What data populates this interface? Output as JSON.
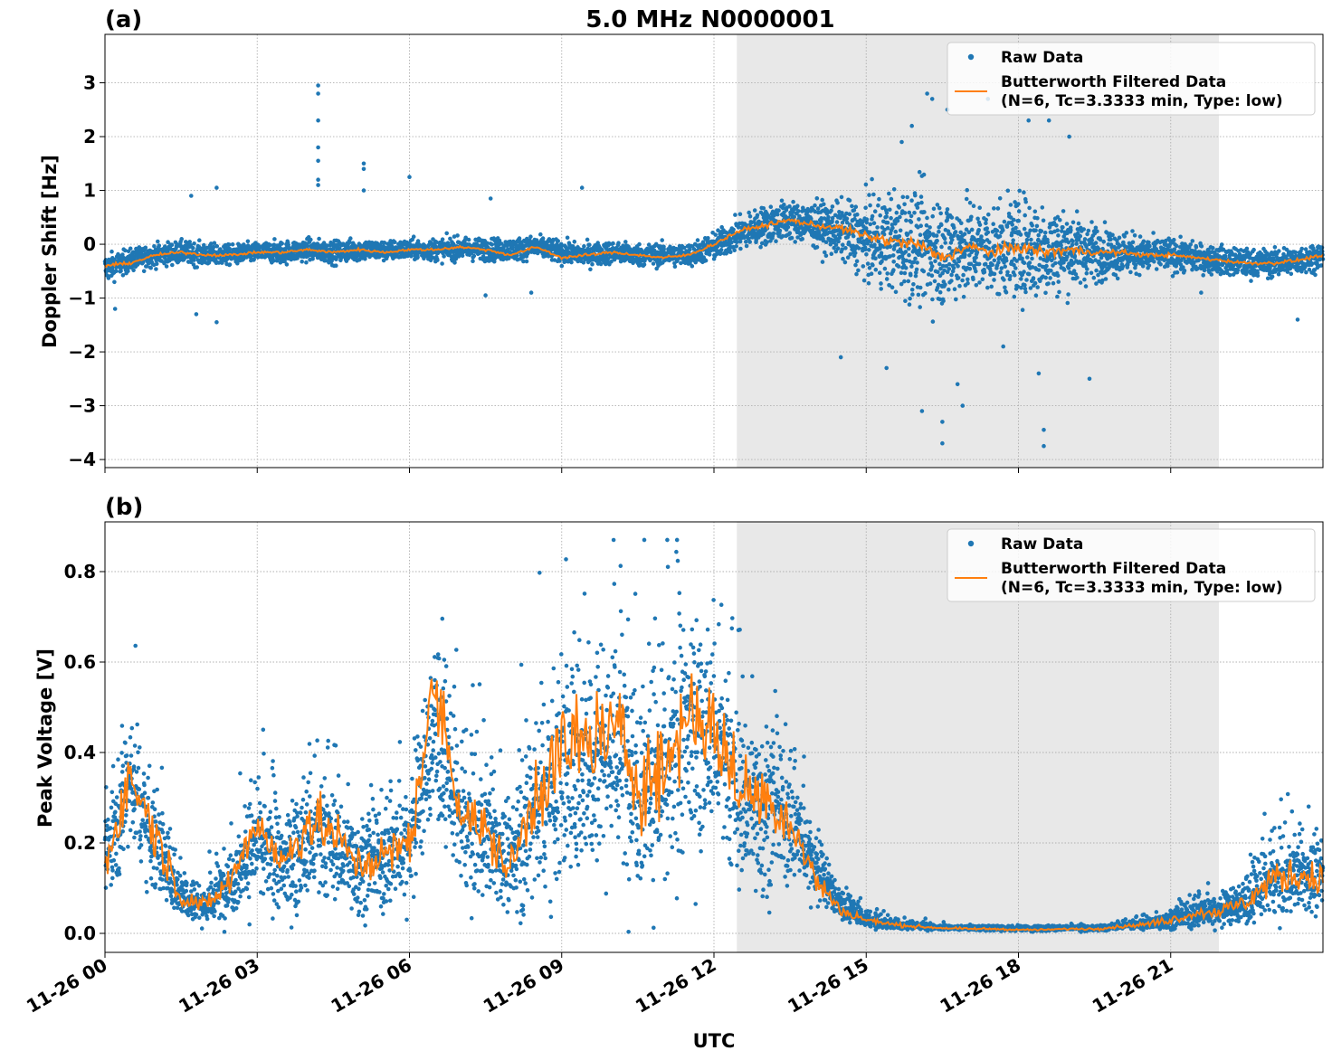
{
  "title": "5.0 MHz N0000001",
  "xlabel": "UTC",
  "x_ticks": [
    "11-26 00",
    "11-26 03",
    "11-26 06",
    "11-26 09",
    "11-26 12",
    "11-26 15",
    "11-26 18",
    "11-26 21"
  ],
  "colors": {
    "raw": "#1f77b4",
    "filtered": "#ff7f0e",
    "shade": "#e8e8e8",
    "grid": "#b0b0b0"
  },
  "chart_data": [
    {
      "panel_label": "(a)",
      "type": "scatter",
      "ylabel": "Doppler Shift [Hz]",
      "xlim": [
        0,
        24
      ],
      "ylim": [
        -4.15,
        3.9
      ],
      "yticks": [
        -4,
        -3,
        -2,
        -1,
        0,
        1,
        2,
        3
      ],
      "ytick_labels": [
        "−4",
        "−3",
        "−2",
        "−1",
        "0",
        "1",
        "2",
        "3"
      ],
      "shaded_x": [
        12.45,
        21.95
      ],
      "grid": true,
      "legend": {
        "placement": "top-right",
        "raw_label": "Raw Data",
        "filtered_label_1": "Butterworth Filtered Data",
        "filtered_label_2": "(N=6, Tc=3.3333 min, Type: low)"
      },
      "series": [
        {
          "name": "Raw Data",
          "x": [
            0,
            0.5,
            1,
            1.5,
            2,
            2.5,
            3,
            3.5,
            4,
            4.5,
            5,
            5.5,
            6,
            6.5,
            7,
            7.5,
            8,
            8.5,
            9,
            9.5,
            10,
            10.5,
            11,
            11.5,
            12,
            12.5,
            13,
            13.5,
            14,
            14.5,
            15,
            15.5,
            16,
            16.5,
            17,
            17.5,
            18,
            18.5,
            19,
            19.5,
            20,
            20.5,
            21,
            21.5,
            22,
            22.5,
            23,
            23.5,
            24
          ],
          "y": [
            -0.45,
            -0.3,
            -0.2,
            -0.15,
            -0.2,
            -0.2,
            -0.15,
            -0.15,
            -0.1,
            -0.15,
            -0.1,
            -0.12,
            -0.1,
            -0.1,
            -0.08,
            -0.1,
            -0.1,
            -0.05,
            -0.15,
            -0.2,
            -0.15,
            -0.2,
            -0.2,
            -0.2,
            -0.05,
            0.2,
            0.35,
            0.45,
            0.35,
            0.25,
            0.1,
            0.05,
            0.0,
            -0.15,
            -0.05,
            -0.1,
            -0.05,
            -0.1,
            -0.1,
            -0.15,
            -0.15,
            -0.2,
            -0.2,
            -0.25,
            -0.3,
            -0.35,
            -0.35,
            -0.3,
            -0.2
          ],
          "spread": [
            0.25,
            0.2,
            0.2,
            0.2,
            0.2,
            0.18,
            0.18,
            0.2,
            0.2,
            0.2,
            0.2,
            0.18,
            0.18,
            0.2,
            0.2,
            0.2,
            0.2,
            0.2,
            0.2,
            0.2,
            0.2,
            0.2,
            0.2,
            0.2,
            0.25,
            0.3,
            0.35,
            0.35,
            0.4,
            0.5,
            0.7,
            0.9,
            1.0,
            1.0,
            0.9,
            0.8,
            0.9,
            0.9,
            0.7,
            0.5,
            0.4,
            0.3,
            0.3,
            0.25,
            0.25,
            0.25,
            0.25,
            0.25,
            0.25
          ],
          "outliers": [
            [
              4.2,
              2.95
            ],
            [
              4.2,
              2.8
            ],
            [
              4.2,
              2.3
            ],
            [
              4.2,
              1.8
            ],
            [
              4.2,
              1.1
            ],
            [
              4.2,
              1.2
            ],
            [
              5.1,
              1.5
            ],
            [
              5.1,
              1.4
            ],
            [
              5.1,
              1.0
            ],
            [
              4.2,
              1.55
            ],
            [
              2.2,
              1.05
            ],
            [
              1.7,
              0.9
            ],
            [
              6.0,
              1.25
            ],
            [
              9.4,
              1.05
            ],
            [
              7.6,
              0.85
            ],
            [
              15.7,
              1.9
            ],
            [
              15.9,
              2.2
            ],
            [
              16.2,
              2.8
            ],
            [
              16.3,
              2.7
            ],
            [
              16.6,
              2.5
            ],
            [
              17.4,
              2.7
            ],
            [
              18.2,
              2.3
            ],
            [
              18.6,
              2.3
            ],
            [
              19.0,
              2.0
            ],
            [
              16.5,
              -3.7
            ],
            [
              16.5,
              -3.3
            ],
            [
              16.9,
              -3.0
            ],
            [
              16.1,
              -3.1
            ],
            [
              15.4,
              -2.3
            ],
            [
              16.8,
              -2.6
            ],
            [
              18.5,
              -3.75
            ],
            [
              18.5,
              -3.45
            ],
            [
              18.4,
              -2.4
            ],
            [
              17.7,
              -1.9
            ],
            [
              19.4,
              -2.5
            ],
            [
              14.5,
              -2.1
            ],
            [
              1.8,
              -1.3
            ],
            [
              2.2,
              -1.45
            ],
            [
              0.2,
              -1.2
            ],
            [
              7.5,
              -0.95
            ],
            [
              8.4,
              -0.9
            ],
            [
              21.6,
              -0.9
            ],
            [
              23.5,
              -1.4
            ]
          ]
        },
        {
          "name": "Butterworth Filtered Data",
          "x": [
            0,
            0.5,
            1,
            1.5,
            2,
            2.5,
            3,
            3.5,
            4,
            4.5,
            5,
            5.5,
            6,
            6.5,
            7,
            7.5,
            8,
            8.5,
            9,
            9.5,
            10,
            10.5,
            11,
            11.5,
            12,
            12.5,
            13,
            13.5,
            14,
            14.5,
            15,
            15.5,
            16,
            16.5,
            17,
            17.5,
            18,
            18.5,
            19,
            19.5,
            20,
            20.5,
            21,
            21.5,
            22,
            22.5,
            23,
            23.5,
            24
          ],
          "y": [
            -0.4,
            -0.35,
            -0.2,
            -0.15,
            -0.2,
            -0.2,
            -0.15,
            -0.15,
            -0.1,
            -0.15,
            -0.1,
            -0.15,
            -0.1,
            -0.1,
            -0.05,
            -0.1,
            -0.2,
            -0.05,
            -0.25,
            -0.2,
            -0.15,
            -0.2,
            -0.25,
            -0.2,
            0.0,
            0.25,
            0.35,
            0.45,
            0.35,
            0.3,
            0.15,
            0.05,
            0.0,
            -0.25,
            -0.05,
            -0.15,
            -0.05,
            -0.15,
            -0.1,
            -0.15,
            -0.15,
            -0.2,
            -0.2,
            -0.25,
            -0.3,
            -0.35,
            -0.35,
            -0.3,
            -0.2
          ]
        }
      ]
    },
    {
      "panel_label": "(b)",
      "type": "scatter",
      "ylabel": "Peak Voltage [V]",
      "xlim": [
        0,
        24
      ],
      "ylim": [
        -0.042,
        0.91
      ],
      "yticks": [
        0.0,
        0.2,
        0.4,
        0.6,
        0.8
      ],
      "ytick_labels": [
        "0.0",
        "0.2",
        "0.4",
        "0.6",
        "0.8"
      ],
      "shaded_x": [
        12.45,
        21.95
      ],
      "grid": true,
      "legend": {
        "placement": "top-right",
        "raw_label": "Raw Data",
        "filtered_label_1": "Butterworth Filtered Data",
        "filtered_label_2": "(N=6, Tc=3.3333 min, Type: low)"
      },
      "series": [
        {
          "name": "Raw Data",
          "x": [
            0,
            0.5,
            1,
            1.5,
            2,
            2.5,
            3,
            3.5,
            4,
            4.5,
            5,
            5.5,
            6,
            6.5,
            7,
            7.5,
            8,
            8.5,
            9,
            9.5,
            10,
            10.5,
            11,
            11.5,
            12,
            12.5,
            13,
            13.5,
            14,
            14.5,
            15,
            15.5,
            16,
            16.5,
            17,
            17.5,
            18,
            18.5,
            19,
            19.5,
            20,
            20.5,
            21,
            21.5,
            22,
            22.5,
            23,
            23.5,
            24
          ],
          "y": [
            0.16,
            0.35,
            0.2,
            0.09,
            0.06,
            0.12,
            0.2,
            0.15,
            0.2,
            0.2,
            0.15,
            0.16,
            0.2,
            0.45,
            0.25,
            0.22,
            0.15,
            0.3,
            0.35,
            0.4,
            0.42,
            0.35,
            0.33,
            0.45,
            0.42,
            0.3,
            0.28,
            0.25,
            0.15,
            0.06,
            0.03,
            0.02,
            0.015,
            0.012,
            0.01,
            0.01,
            0.008,
            0.008,
            0.01,
            0.01,
            0.015,
            0.02,
            0.03,
            0.045,
            0.05,
            0.07,
            0.12,
            0.13,
            0.12
          ],
          "spread": [
            0.08,
            0.15,
            0.12,
            0.05,
            0.04,
            0.08,
            0.12,
            0.1,
            0.14,
            0.12,
            0.1,
            0.1,
            0.12,
            0.18,
            0.15,
            0.14,
            0.1,
            0.22,
            0.25,
            0.25,
            0.25,
            0.25,
            0.25,
            0.25,
            0.2,
            0.2,
            0.18,
            0.12,
            0.07,
            0.03,
            0.015,
            0.01,
            0.008,
            0.006,
            0.005,
            0.005,
            0.004,
            0.004,
            0.005,
            0.006,
            0.008,
            0.012,
            0.02,
            0.03,
            0.03,
            0.05,
            0.08,
            0.08,
            0.08
          ]
        },
        {
          "name": "Butterworth Filtered Data",
          "x": [
            0,
            0.5,
            1,
            1.5,
            2,
            2.5,
            3,
            3.5,
            4,
            4.5,
            5,
            5.5,
            6,
            6.5,
            7,
            7.5,
            8,
            8.5,
            9,
            9.5,
            10,
            10.5,
            11,
            11.5,
            12,
            12.5,
            13,
            13.5,
            14,
            14.5,
            15,
            15.5,
            16,
            16.5,
            17,
            17.5,
            18,
            18.5,
            19,
            19.5,
            20,
            20.5,
            21,
            21.5,
            22,
            22.5,
            23,
            23.5,
            24
          ],
          "y": [
            0.15,
            0.35,
            0.22,
            0.08,
            0.06,
            0.12,
            0.25,
            0.15,
            0.25,
            0.22,
            0.15,
            0.17,
            0.2,
            0.55,
            0.28,
            0.22,
            0.14,
            0.32,
            0.4,
            0.42,
            0.45,
            0.35,
            0.35,
            0.5,
            0.45,
            0.32,
            0.3,
            0.25,
            0.12,
            0.05,
            0.03,
            0.02,
            0.015,
            0.012,
            0.01,
            0.01,
            0.008,
            0.008,
            0.01,
            0.01,
            0.015,
            0.02,
            0.03,
            0.045,
            0.05,
            0.07,
            0.12,
            0.13,
            0.12
          ]
        }
      ]
    }
  ]
}
